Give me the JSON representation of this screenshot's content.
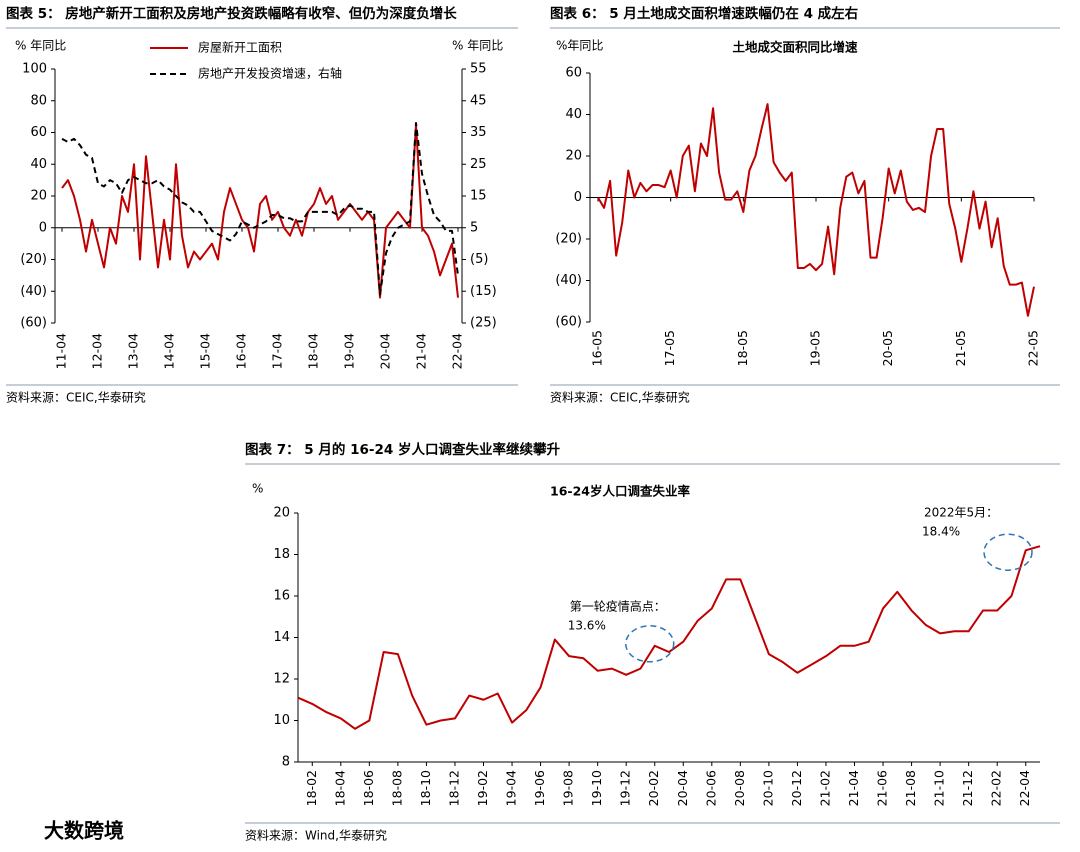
{
  "chart_data": [
    {
      "type": "line",
      "title": "图表 5：  房地产新开工面积及房地产投资跌幅略有收窄、但仍为深度负增长",
      "source": "资料来源：CEIC,华泰研究",
      "y_label": "% 年同比",
      "y2_label": "% 年同比",
      "legend": "upper left",
      "categories": [
        "11-04",
        null,
        null,
        null,
        null,
        null,
        "12-04",
        null,
        null,
        null,
        null,
        null,
        "13-04",
        null,
        null,
        null,
        null,
        null,
        "14-04",
        null,
        null,
        null,
        null,
        null,
        "15-04",
        null,
        null,
        null,
        null,
        null,
        "16-04",
        null,
        null,
        null,
        null,
        null,
        "17-04",
        null,
        null,
        null,
        null,
        null,
        "18-04",
        null,
        null,
        null,
        null,
        null,
        "19-04",
        null,
        null,
        null,
        null,
        null,
        "20-04",
        null,
        null,
        null,
        null,
        null,
        "21-04",
        null,
        null,
        null,
        null,
        null,
        "22-04"
      ],
      "series": [
        {
          "name": "房屋新开工面积",
          "color": "#c00000",
          "values": [
            25,
            30,
            20,
            5,
            -15,
            5,
            -10,
            -25,
            0,
            -10,
            20,
            10,
            40,
            -20,
            45,
            10,
            -25,
            5,
            -20,
            40,
            -5,
            -25,
            -15,
            -20,
            -15,
            -10,
            -20,
            10,
            25,
            15,
            5,
            0,
            -15,
            15,
            20,
            5,
            10,
            0,
            -5,
            5,
            -5,
            10,
            15,
            25,
            15,
            20,
            5,
            10,
            15,
            10,
            5,
            10,
            5,
            -44,
            0,
            5,
            10,
            5,
            0,
            65,
            0,
            -5,
            -15,
            -30,
            -20,
            -10,
            -44
          ]
        },
        {
          "name": "房地产开发投资增速，右轴",
          "color": "#000000",
          "linestyle": "dashed",
          "axis": "y2",
          "values": [
            33,
            32,
            33,
            31,
            28,
            27,
            19,
            18,
            20,
            19,
            16,
            20,
            21,
            20,
            19,
            19,
            20,
            18,
            17,
            15,
            13,
            12,
            10,
            10,
            7,
            4,
            3,
            2,
            1,
            3,
            7,
            6,
            5,
            6,
            7,
            9,
            9,
            8,
            8,
            7,
            7,
            10,
            10,
            10,
            10,
            10,
            9,
            11,
            12,
            11,
            11,
            10,
            10,
            -16,
            -3,
            2,
            5,
            6,
            7,
            38,
            22,
            15,
            9,
            7,
            4,
            4,
            -10
          ]
        }
      ],
      "ylim": [
        -60,
        100
      ],
      "yticks": [
        {
          "value": -60,
          "label": "(60)"
        },
        {
          "value": -40,
          "label": "(40)"
        },
        {
          "value": -20,
          "label": "(20)"
        },
        0,
        20,
        40,
        60,
        80,
        100
      ],
      "y2lim": [
        -25,
        55
      ],
      "y2ticks": [
        {
          "value": -25,
          "label": "(25)"
        },
        {
          "value": -15,
          "label": "(15)"
        },
        {
          "value": -5,
          "label": "(5)"
        },
        5,
        15,
        25,
        35,
        45,
        55
      ]
    },
    {
      "type": "line",
      "title": "图表 6：  5 月土地成交面积增速跌幅仍在 4 成左右",
      "source": "资料来源：CEIC,华泰研究",
      "subtitle": "土地成交面积同比增速",
      "y_label": "%年同比",
      "categories": [
        "16-05",
        null,
        null,
        null,
        null,
        null,
        null,
        null,
        null,
        null,
        null,
        null,
        "17-05",
        null,
        null,
        null,
        null,
        null,
        null,
        null,
        null,
        null,
        null,
        null,
        "18-05",
        null,
        null,
        null,
        null,
        null,
        null,
        null,
        null,
        null,
        null,
        null,
        "19-05",
        null,
        null,
        null,
        null,
        null,
        null,
        null,
        null,
        null,
        null,
        null,
        "20-05",
        null,
        null,
        null,
        null,
        null,
        null,
        null,
        null,
        null,
        null,
        null,
        "21-05",
        null,
        null,
        null,
        null,
        null,
        null,
        null,
        null,
        null,
        null,
        null,
        "22-05"
      ],
      "series": [
        {
          "color": "#c00000",
          "values": [
            0,
            -5,
            8,
            -28,
            -12,
            13,
            0,
            7,
            3,
            6,
            6,
            5,
            13,
            0,
            20,
            25,
            3,
            26,
            20,
            43,
            12,
            -1,
            -1,
            3,
            -7,
            13,
            20,
            33,
            45,
            17,
            12,
            8,
            12,
            -34,
            -34,
            -32,
            -35,
            -32,
            -14,
            -37,
            -5,
            10,
            12,
            2,
            8,
            -29,
            -29,
            -10,
            14,
            2,
            13,
            -2,
            -6,
            -5,
            -7,
            20,
            33,
            33,
            -3,
            -15,
            -31,
            -15,
            3,
            -15,
            -2,
            -24,
            -10,
            -33,
            -42,
            -42,
            -41,
            -57,
            -43
          ]
        }
      ],
      "ylim": [
        -60,
        60
      ],
      "yticks": [
        {
          "value": -60,
          "label": "(60)"
        },
        {
          "value": -40,
          "label": "(40)"
        },
        {
          "value": -20,
          "label": "(20)"
        },
        0,
        20,
        40,
        60
      ]
    },
    {
      "type": "line",
      "title": "图表 7：  5 月的 16-24 岁人口调查失业率继续攀升",
      "source": "资料来源：Wind,华泰研究",
      "subtitle": "16-24岁人口调查失业率",
      "y_label": "%",
      "categories": [
        null,
        "18-02",
        null,
        "18-04",
        null,
        "18-06",
        null,
        "18-08",
        null,
        "18-10",
        null,
        "18-12",
        null,
        "19-02",
        null,
        "19-04",
        null,
        "19-06",
        null,
        "19-08",
        null,
        "19-10",
        null,
        "19-12",
        null,
        "20-02",
        null,
        "20-04",
        null,
        "20-06",
        null,
        "20-08",
        null,
        "20-10",
        null,
        "20-12",
        null,
        "21-02",
        null,
        "21-04",
        null,
        "21-06",
        null,
        "21-08",
        null,
        "21-10",
        null,
        "21-12",
        null,
        "22-02",
        null,
        "22-04",
        null
      ],
      "series": [
        {
          "color": "#c00000",
          "values": [
            11.1,
            10.8,
            10.4,
            10.1,
            9.6,
            10.0,
            13.3,
            13.2,
            11.2,
            9.8,
            10.0,
            10.1,
            11.2,
            11.0,
            11.3,
            9.9,
            10.5,
            11.6,
            13.9,
            13.1,
            13.0,
            12.4,
            12.5,
            12.2,
            12.5,
            13.6,
            13.3,
            13.8,
            14.8,
            15.4,
            16.8,
            16.8,
            15.0,
            13.2,
            12.8,
            12.3,
            12.7,
            13.1,
            13.6,
            13.6,
            13.8,
            15.4,
            16.2,
            15.3,
            14.6,
            14.2,
            14.3,
            14.3,
            15.3,
            15.3,
            16.0,
            18.2,
            18.4
          ],
          "value_labels": [
            null,
            null,
            null,
            null,
            null,
            null,
            null,
            null,
            null,
            null,
            null,
            null,
            null,
            null,
            null,
            null,
            null,
            null,
            null,
            null,
            null,
            null,
            null,
            null,
            null,
            "13.6%",
            null,
            null,
            null,
            null,
            null,
            null,
            null,
            null,
            null,
            null,
            null,
            null,
            null,
            null,
            null,
            null,
            null,
            null,
            null,
            null,
            null,
            null,
            null,
            null,
            null,
            null,
            "18.4%"
          ]
        }
      ],
      "annotations": [
        "第一轮疫情高点：",
        "2022年5月："
      ],
      "ylim": [
        8,
        20
      ],
      "yticks": [
        8,
        10,
        12,
        14,
        16,
        18,
        20
      ]
    }
  ],
  "watermark": "大数跨境"
}
